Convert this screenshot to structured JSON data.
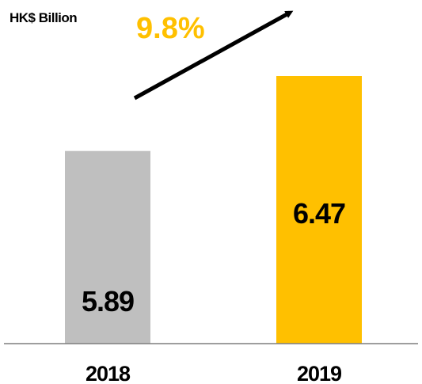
{
  "chart_data": {
    "type": "bar",
    "unit_label": "HK$ Billion",
    "categories": [
      "2018",
      "2019"
    ],
    "values": [
      5.89,
      6.47
    ],
    "value_labels": [
      "5.89",
      "6.47"
    ],
    "growth_label": "9.8%",
    "bar_colors": [
      "#BFBFBF",
      "#FFC000"
    ],
    "growth_color": "#FFC000",
    "axis_color": "#7F7F7F",
    "arrow_color": "#000000",
    "grid": false,
    "legend": "none"
  }
}
